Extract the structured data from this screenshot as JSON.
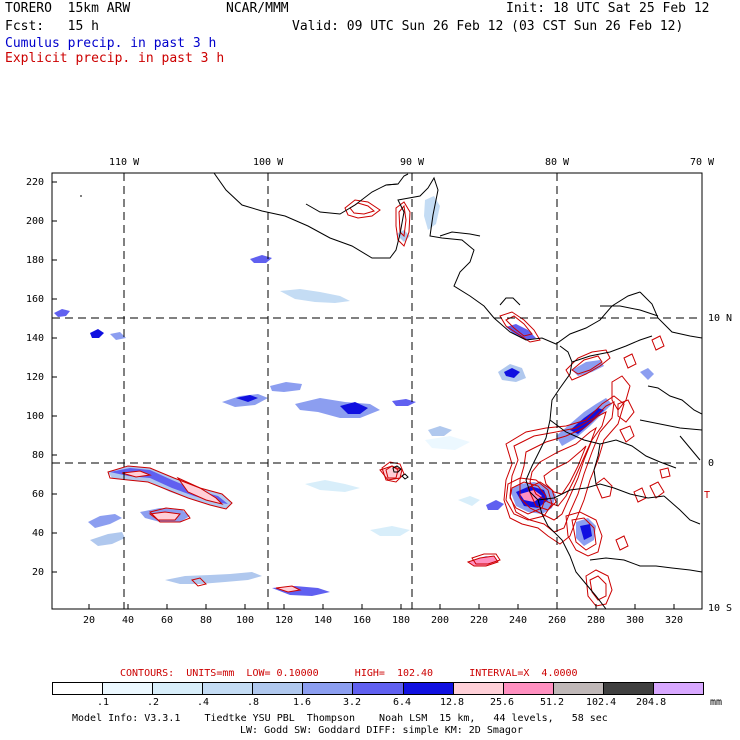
{
  "header": {
    "model": "TORERO  15km ARW",
    "org": "NCAR/MMM",
    "init": "Init: 18 UTC Sat 25 Feb 12",
    "fcst": "Fcst:   15 h",
    "valid": "Valid: 09 UTC Sun 26 Feb 12 (03 CST Sun 26 Feb 12)",
    "cumulus_label": "Cumulus precip. in past 3 h",
    "explicit_label": "Explicit precip. in past 3 h"
  },
  "colors": {
    "cumulus": "#0000cc",
    "explicit": "#cc0000",
    "coast": "#000000"
  },
  "map": {
    "lon_labels": [
      {
        "text": "110 W"
      },
      {
        "text": "100 W"
      },
      {
        "text": "90 W"
      },
      {
        "text": "80 W"
      },
      {
        "text": "70 W"
      }
    ],
    "lat_labels": [
      {
        "text": "10 N"
      },
      {
        "text": "0"
      },
      {
        "text": "10 S"
      }
    ],
    "y_ticks": [
      "220",
      "200",
      "180",
      "160",
      "140",
      "120",
      "100",
      "80",
      "60",
      "40",
      "20"
    ],
    "x_ticks": [
      "20",
      "40",
      "60",
      "80",
      "100",
      "120",
      "140",
      "160",
      "180",
      "200",
      "220",
      "240",
      "260",
      "280",
      "300",
      "320"
    ],
    "small_marker": "T"
  },
  "contour_info": {
    "text": "CONTOURS:  UNITS=mm  LOW= 0.10000      HIGH=  102.40      INTERVAL=X  4.0000"
  },
  "colorbar": {
    "unit": "mm",
    "colors": [
      "#ffffff",
      "#ecf8ff",
      "#d8eefa",
      "#c4dcf4",
      "#b0c8ee",
      "#8c9ef0",
      "#6060f0",
      "#1010e0",
      "#ffd0d8",
      "#ff90c0",
      "#c0b8b8",
      "#404040",
      "#d8a8ff"
    ],
    "labels": [
      ".1",
      ".2",
      ".4",
      ".8",
      "1.6",
      "3.2",
      "6.4",
      "12.8",
      "25.6",
      "51.2",
      "102.4",
      "204.8"
    ]
  },
  "footer": {
    "line1": "Model Info: V3.3.1    Tiedtke YSU PBL  Thompson    Noah LSM  15 km,   44 levels,   58 sec",
    "line2": "LW: Godd SW: Goddard DIFF: simple KM: 2D Smagor"
  }
}
